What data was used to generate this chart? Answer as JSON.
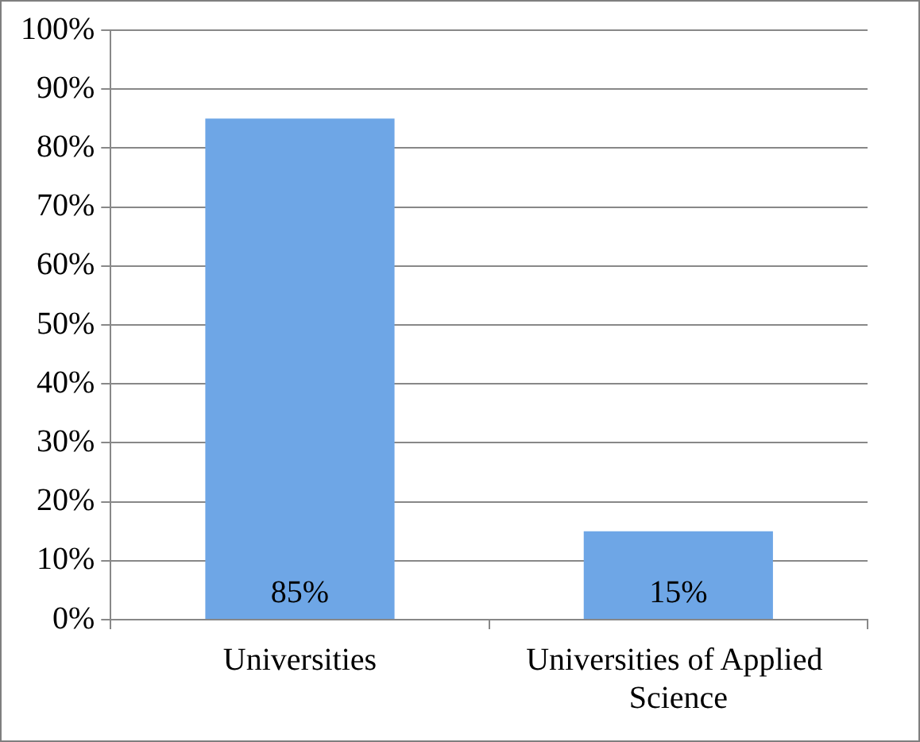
{
  "chart_data": {
    "type": "bar",
    "categories": [
      "Universities",
      "Universities of Applied  Science"
    ],
    "values": [
      85,
      15
    ],
    "color": "#6ea6e6",
    "value_labels": [
      "85%",
      "15%"
    ],
    "ylim": [
      0,
      100
    ],
    "yticks": [
      {
        "value": 0,
        "label": "0%"
      },
      {
        "value": 10,
        "label": "10%"
      },
      {
        "value": 20,
        "label": "20%"
      },
      {
        "value": 30,
        "label": "30%"
      },
      {
        "value": 40,
        "label": "40%"
      },
      {
        "value": 50,
        "label": "50%"
      },
      {
        "value": 60,
        "label": "60%"
      },
      {
        "value": 70,
        "label": "70%"
      },
      {
        "value": 80,
        "label": "80%"
      },
      {
        "value": 90,
        "label": "90%"
      },
      {
        "value": 100,
        "label": "100%"
      }
    ],
    "grid": "y",
    "legend": false
  }
}
